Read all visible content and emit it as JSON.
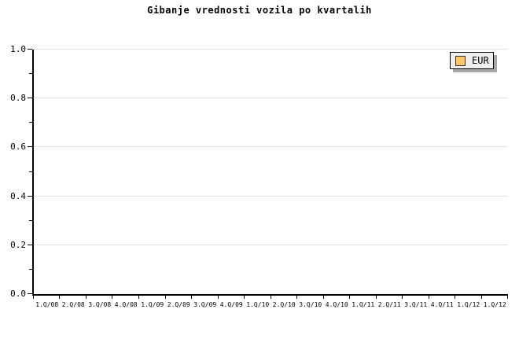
{
  "colors": {
    "background": "#FFFFFF",
    "axis": "#000000",
    "gridline": "#E0E0E0",
    "text": "#000000",
    "legend_background": "#EFEFEF",
    "legend_border": "#000000",
    "legend_shadow": "#A8A8A8",
    "series_eur": "#FCC766"
  },
  "chart_data": {
    "type": "line",
    "title": "Gibanje vrednosti vozila po kvartalih",
    "categories": [
      "1.Q/08",
      "2.Q/08",
      "3.Q/08",
      "4.Q/08",
      "1.Q/09",
      "2.Q/09",
      "3.Q/09",
      "4.Q/09",
      "1.Q/10",
      "2.Q/10",
      "3.Q/10",
      "4.Q/10",
      "1.Q/11",
      "2.Q/11",
      "3.Q/11",
      "4.Q/11",
      "1.Q/12",
      "1.Q/12"
    ],
    "series": [
      {
        "name": "EUR",
        "color": "#FCC766",
        "values": []
      }
    ],
    "xlabel": "",
    "ylabel": "",
    "ylim": [
      0.0,
      1.0
    ],
    "y_major_ticks": [
      {
        "value": 0.0,
        "label": "0.0"
      },
      {
        "value": 0.2,
        "label": "0.2"
      },
      {
        "value": 0.4,
        "label": "0.4"
      },
      {
        "value": 0.6,
        "label": "0.6"
      },
      {
        "value": 0.8,
        "label": "0.8"
      },
      {
        "value": 1.0,
        "label": "1.0"
      }
    ],
    "y_minor_tick_values": [
      0.1,
      0.3,
      0.5,
      0.7,
      0.9
    ],
    "grid": "horizontal major gridlines only",
    "legend_position": "top-right-inside"
  }
}
